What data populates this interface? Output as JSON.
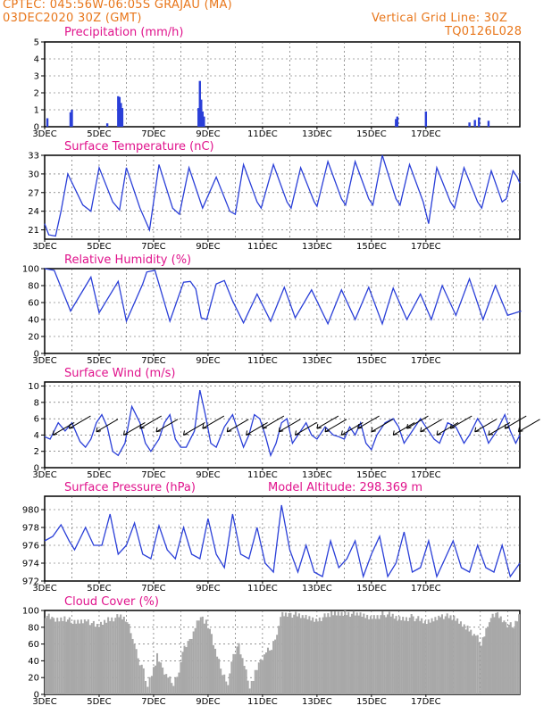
{
  "header": {
    "left_line1": "CPTEC:   045:56W-06:05S   GRAJAU (MA)",
    "left_line2": "03DEC2020 30Z (GMT)",
    "right_line1": "Vertical Grid Line: 30Z",
    "right_line2": "TQ0126L028"
  },
  "colors": {
    "header": "#e8761a",
    "title": "#e0138c",
    "line": "#2a3fd8",
    "cloud": "#a8a8a8"
  },
  "chart_data": [
    {
      "type": "bar",
      "title": "Precipitation (mm/h)",
      "x_labels": [
        "3DEC",
        "5DEC",
        "7DEC",
        "9DEC",
        "11DEC",
        "13DEC",
        "15DEC",
        "17DEC"
      ],
      "yticks": [
        "0",
        "1",
        "2",
        "3",
        "4",
        "5"
      ],
      "ylim": [
        0,
        5
      ],
      "bars": [
        {
          "day": 0.1,
          "value": 0.5
        },
        {
          "day": 0.95,
          "value": 0.85
        },
        {
          "day": 1.0,
          "value": 1.0
        },
        {
          "day": 2.3,
          "value": 0.2
        },
        {
          "day": 2.7,
          "value": 1.8
        },
        {
          "day": 2.75,
          "value": 1.75
        },
        {
          "day": 2.8,
          "value": 1.4
        },
        {
          "day": 2.85,
          "value": 1.1
        },
        {
          "day": 5.65,
          "value": 1.1
        },
        {
          "day": 5.7,
          "value": 2.7
        },
        {
          "day": 5.75,
          "value": 1.6
        },
        {
          "day": 5.8,
          "value": 0.9
        },
        {
          "day": 5.85,
          "value": 0.6
        },
        {
          "day": 12.9,
          "value": 0.45
        },
        {
          "day": 12.95,
          "value": 0.6
        },
        {
          "day": 14.0,
          "value": 0.9
        },
        {
          "day": 15.6,
          "value": 0.25
        },
        {
          "day": 15.8,
          "value": 0.4
        },
        {
          "day": 15.95,
          "value": 0.55
        },
        {
          "day": 16.3,
          "value": 0.35
        }
      ]
    },
    {
      "type": "line",
      "title": "Surface Temperature (nC)",
      "x_labels": [
        "3DEC",
        "5DEC",
        "7DEC",
        "9DEC",
        "11DEC",
        "13DEC",
        "15DEC",
        "17DEC"
      ],
      "yticks": [
        "21",
        "24",
        "27",
        "30",
        "33"
      ],
      "ylim": [
        19.5,
        33
      ],
      "points": [
        [
          0,
          22
        ],
        [
          0.15,
          20.2
        ],
        [
          0.4,
          20
        ],
        [
          0.6,
          24
        ],
        [
          0.85,
          30
        ],
        [
          1.4,
          25
        ],
        [
          1.7,
          24
        ],
        [
          2.0,
          31
        ],
        [
          2.5,
          25.5
        ],
        [
          2.75,
          24.2
        ],
        [
          3.0,
          31
        ],
        [
          3.5,
          24.5
        ],
        [
          3.85,
          21
        ],
        [
          4.2,
          31.5
        ],
        [
          4.7,
          24.5
        ],
        [
          4.95,
          23.5
        ],
        [
          5.3,
          31
        ],
        [
          5.8,
          24.5
        ],
        [
          5.9,
          25.5
        ],
        [
          6.3,
          29.5
        ],
        [
          6.8,
          24
        ],
        [
          7.0,
          23.5
        ],
        [
          7.3,
          31.5
        ],
        [
          7.8,
          25.5
        ],
        [
          7.95,
          24.5
        ],
        [
          8.4,
          31.5
        ],
        [
          8.9,
          25.5
        ],
        [
          9.05,
          24.5
        ],
        [
          9.4,
          31
        ],
        [
          9.9,
          25.5
        ],
        [
          10.0,
          24.8
        ],
        [
          10.4,
          32
        ],
        [
          10.9,
          26
        ],
        [
          11.05,
          25
        ],
        [
          11.4,
          32
        ],
        [
          11.9,
          26
        ],
        [
          12.05,
          25
        ],
        [
          12.4,
          33
        ],
        [
          12.9,
          26
        ],
        [
          13.05,
          25
        ],
        [
          13.4,
          31.5
        ],
        [
          13.9,
          25.5
        ],
        [
          14.1,
          22
        ],
        [
          14.4,
          31
        ],
        [
          14.9,
          25.5
        ],
        [
          15.05,
          24.5
        ],
        [
          15.4,
          31
        ],
        [
          15.9,
          25.5
        ],
        [
          16.05,
          24.5
        ],
        [
          16.4,
          30.5
        ],
        [
          16.8,
          25.5
        ],
        [
          16.95,
          26
        ],
        [
          17.2,
          30.5
        ],
        [
          17.35,
          29.5
        ],
        [
          17.45,
          28.5
        ]
      ]
    },
    {
      "type": "line",
      "title": "Relative Humidity (%)",
      "x_labels": [
        "3DEC",
        "5DEC",
        "7DEC",
        "9DEC",
        "11DEC",
        "13DEC",
        "15DEC",
        "17DEC"
      ],
      "yticks": [
        "0",
        "20",
        "40",
        "60",
        "80",
        "100"
      ],
      "ylim": [
        0,
        100
      ],
      "points": [
        [
          0,
          100
        ],
        [
          0.35,
          98
        ],
        [
          0.95,
          50
        ],
        [
          1.7,
          90
        ],
        [
          2.0,
          48
        ],
        [
          2.7,
          85
        ],
        [
          3.0,
          38
        ],
        [
          3.6,
          82
        ],
        [
          3.75,
          96
        ],
        [
          4.05,
          98
        ],
        [
          4.6,
          38
        ],
        [
          5.1,
          84
        ],
        [
          5.35,
          85
        ],
        [
          5.55,
          76
        ],
        [
          5.75,
          42
        ],
        [
          5.95,
          40
        ],
        [
          6.3,
          82
        ],
        [
          6.6,
          86
        ],
        [
          6.9,
          62
        ],
        [
          7.3,
          36
        ],
        [
          7.8,
          70
        ],
        [
          8.3,
          38
        ],
        [
          8.8,
          78
        ],
        [
          9.2,
          42
        ],
        [
          9.8,
          75
        ],
        [
          10.4,
          35
        ],
        [
          10.9,
          75
        ],
        [
          11.4,
          40
        ],
        [
          11.9,
          78
        ],
        [
          12.4,
          35
        ],
        [
          12.8,
          77
        ],
        [
          13.3,
          40
        ],
        [
          13.8,
          70
        ],
        [
          14.2,
          40
        ],
        [
          14.6,
          80
        ],
        [
          15.1,
          45
        ],
        [
          15.6,
          88
        ],
        [
          16.1,
          40
        ],
        [
          16.55,
          80
        ],
        [
          17.0,
          45
        ],
        [
          17.5,
          50
        ]
      ]
    },
    {
      "type": "line",
      "title": "Surface Wind (m/s)",
      "x_labels": [
        "3DEC",
        "5DEC",
        "7DEC",
        "9DEC",
        "11DEC",
        "13DEC",
        "15DEC",
        "17DEC"
      ],
      "yticks": [
        "0",
        "2",
        "4",
        "6",
        "8",
        "10"
      ],
      "ylim": [
        0,
        10.5
      ],
      "points": [
        [
          0,
          3.8
        ],
        [
          0.2,
          3.5
        ],
        [
          0.5,
          5.5
        ],
        [
          0.75,
          4.5
        ],
        [
          1.0,
          5.5
        ],
        [
          1.3,
          3.2
        ],
        [
          1.5,
          2.5
        ],
        [
          1.7,
          3.5
        ],
        [
          1.9,
          5.5
        ],
        [
          2.1,
          6.5
        ],
        [
          2.3,
          5
        ],
        [
          2.5,
          2
        ],
        [
          2.7,
          1.5
        ],
        [
          2.95,
          3
        ],
        [
          3.2,
          7.5
        ],
        [
          3.5,
          5.5
        ],
        [
          3.7,
          3
        ],
        [
          3.9,
          2
        ],
        [
          4.2,
          3.5
        ],
        [
          4.4,
          5.5
        ],
        [
          4.6,
          6.5
        ],
        [
          4.8,
          3.5
        ],
        [
          5.0,
          2.5
        ],
        [
          5.2,
          2.5
        ],
        [
          5.5,
          4.5
        ],
        [
          5.7,
          9.5
        ],
        [
          5.9,
          6.5
        ],
        [
          6.1,
          3
        ],
        [
          6.3,
          2.5
        ],
        [
          6.6,
          5
        ],
        [
          6.9,
          6.5
        ],
        [
          7.1,
          4.5
        ],
        [
          7.3,
          2.5
        ],
        [
          7.5,
          4
        ],
        [
          7.7,
          6.5
        ],
        [
          7.9,
          6
        ],
        [
          8.1,
          4
        ],
        [
          8.3,
          1.5
        ],
        [
          8.5,
          3
        ],
        [
          8.7,
          5.5
        ],
        [
          8.9,
          6
        ],
        [
          9.1,
          3
        ],
        [
          9.4,
          4.5
        ],
        [
          9.6,
          5.5
        ],
        [
          9.8,
          4
        ],
        [
          10.0,
          3.5
        ],
        [
          10.3,
          5
        ],
        [
          10.6,
          4
        ],
        [
          10.8,
          3.8
        ],
        [
          11.0,
          3.5
        ],
        [
          11.2,
          5
        ],
        [
          11.4,
          4
        ],
        [
          11.6,
          5.5
        ],
        [
          11.8,
          3
        ],
        [
          12.0,
          2.2
        ],
        [
          12.2,
          4
        ],
        [
          12.5,
          5.5
        ],
        [
          12.8,
          6
        ],
        [
          13.0,
          5
        ],
        [
          13.2,
          3
        ],
        [
          13.5,
          4.5
        ],
        [
          13.8,
          6
        ],
        [
          14.0,
          5
        ],
        [
          14.3,
          3.5
        ],
        [
          14.5,
          3
        ],
        [
          14.8,
          5.5
        ],
        [
          15.1,
          5
        ],
        [
          15.4,
          3
        ],
        [
          15.6,
          4
        ],
        [
          15.9,
          6
        ],
        [
          16.1,
          5
        ],
        [
          16.3,
          3
        ],
        [
          16.6,
          4.5
        ],
        [
          16.9,
          6.5
        ],
        [
          17.1,
          4.5
        ],
        [
          17.3,
          3
        ],
        [
          17.45,
          4
        ]
      ],
      "arrow_days": [
        0.3,
        0.9,
        1.9,
        2.9,
        3.5,
        4.1,
        5.1,
        5.8,
        6.7,
        7.4,
        8.0,
        8.6,
        9.2,
        10.0,
        10.3,
        10.9,
        11.5,
        12.0,
        12.8,
        13.3,
        13.8,
        14.4,
        14.9,
        15.8,
        16.3,
        16.9,
        17.4
      ]
    },
    {
      "type": "line",
      "title": "Surface Pressure (hPa)",
      "annotation": "Model Altitude: 298.369 m",
      "x_labels": [
        "3DEC",
        "5DEC",
        "7DEC",
        "9DEC",
        "11DEC",
        "13DEC",
        "15DEC",
        "17DEC"
      ],
      "yticks": [
        "972",
        "974",
        "976",
        "978",
        "980"
      ],
      "ylim": [
        972,
        981.5
      ],
      "points": [
        [
          0,
          976.5
        ],
        [
          0.3,
          977
        ],
        [
          0.6,
          978.3
        ],
        [
          0.9,
          976.5
        ],
        [
          1.1,
          975.5
        ],
        [
          1.5,
          978
        ],
        [
          1.8,
          976
        ],
        [
          2.1,
          976
        ],
        [
          2.4,
          979.5
        ],
        [
          2.7,
          975
        ],
        [
          3.0,
          976
        ],
        [
          3.3,
          978.5
        ],
        [
          3.6,
          975
        ],
        [
          3.9,
          974.5
        ],
        [
          4.2,
          978.2
        ],
        [
          4.5,
          975.5
        ],
        [
          4.8,
          974.5
        ],
        [
          5.1,
          978
        ],
        [
          5.4,
          975
        ],
        [
          5.7,
          974.5
        ],
        [
          6.0,
          979
        ],
        [
          6.3,
          975
        ],
        [
          6.6,
          973.5
        ],
        [
          6.9,
          979.5
        ],
        [
          7.2,
          975
        ],
        [
          7.5,
          974.5
        ],
        [
          7.8,
          978
        ],
        [
          8.1,
          974
        ],
        [
          8.4,
          973
        ],
        [
          8.7,
          980.5
        ],
        [
          9.0,
          975.5
        ],
        [
          9.3,
          973
        ],
        [
          9.6,
          976
        ],
        [
          9.9,
          973
        ],
        [
          10.2,
          972.5
        ],
        [
          10.5,
          976.5
        ],
        [
          10.8,
          973.5
        ],
        [
          11.1,
          974.5
        ],
        [
          11.4,
          976.5
        ],
        [
          11.7,
          972.5
        ],
        [
          12.0,
          975
        ],
        [
          12.3,
          977
        ],
        [
          12.6,
          972.5
        ],
        [
          12.9,
          974
        ],
        [
          13.2,
          977.5
        ],
        [
          13.5,
          973
        ],
        [
          13.8,
          973.5
        ],
        [
          14.1,
          976.5
        ],
        [
          14.4,
          972.5
        ],
        [
          14.7,
          974.5
        ],
        [
          15.0,
          976.5
        ],
        [
          15.3,
          973.5
        ],
        [
          15.6,
          973
        ],
        [
          15.9,
          976
        ],
        [
          16.2,
          973.5
        ],
        [
          16.5,
          973
        ],
        [
          16.8,
          976
        ],
        [
          17.1,
          972.5
        ],
        [
          17.45,
          974
        ]
      ]
    },
    {
      "type": "bar",
      "title": "Cloud Cover (%)",
      "x_labels": [
        "3DEC",
        "5DEC",
        "7DEC",
        "9DEC",
        "11DEC",
        "13DEC",
        "15DEC",
        "17DEC"
      ],
      "yticks": [
        "0",
        "20",
        "40",
        "60",
        "80",
        "100"
      ],
      "ylim": [
        0,
        100
      ],
      "profile": [
        [
          0,
          95
        ],
        [
          0.3,
          88
        ],
        [
          0.7,
          92
        ],
        [
          1.0,
          85
        ],
        [
          1.5,
          90
        ],
        [
          1.9,
          80
        ],
        [
          2.3,
          90
        ],
        [
          2.7,
          92
        ],
        [
          3.0,
          88
        ],
        [
          3.2,
          70
        ],
        [
          3.4,
          40
        ],
        [
          3.6,
          30
        ],
        [
          3.75,
          10
        ],
        [
          3.9,
          25
        ],
        [
          4.1,
          45
        ],
        [
          4.3,
          30
        ],
        [
          4.5,
          20
        ],
        [
          4.7,
          12
        ],
        [
          4.9,
          30
        ],
        [
          5.1,
          55
        ],
        [
          5.3,
          65
        ],
        [
          5.5,
          80
        ],
        [
          5.7,
          95
        ],
        [
          5.9,
          85
        ],
        [
          6.1,
          70
        ],
        [
          6.3,
          45
        ],
        [
          6.5,
          25
        ],
        [
          6.7,
          15
        ],
        [
          6.9,
          45
        ],
        [
          7.1,
          60
        ],
        [
          7.3,
          35
        ],
        [
          7.5,
          10
        ],
        [
          7.7,
          25
        ],
        [
          7.9,
          40
        ],
        [
          8.1,
          50
        ],
        [
          8.3,
          55
        ],
        [
          8.5,
          75
        ],
        [
          8.7,
          95
        ],
        [
          9.0,
          96
        ],
        [
          9.5,
          92
        ],
        [
          10.0,
          90
        ],
        [
          10.5,
          95
        ],
        [
          11.0,
          98
        ],
        [
          11.5,
          94
        ],
        [
          12.0,
          92
        ],
        [
          12.5,
          96
        ],
        [
          13.0,
          90
        ],
        [
          13.5,
          92
        ],
        [
          14.0,
          85
        ],
        [
          14.5,
          95
        ],
        [
          15.0,
          90
        ],
        [
          15.5,
          80
        ],
        [
          15.8,
          70
        ],
        [
          16.0,
          60
        ],
        [
          16.3,
          90
        ],
        [
          16.6,
          95
        ],
        [
          16.9,
          85
        ],
        [
          17.2,
          80
        ],
        [
          17.45,
          98
        ]
      ]
    }
  ]
}
